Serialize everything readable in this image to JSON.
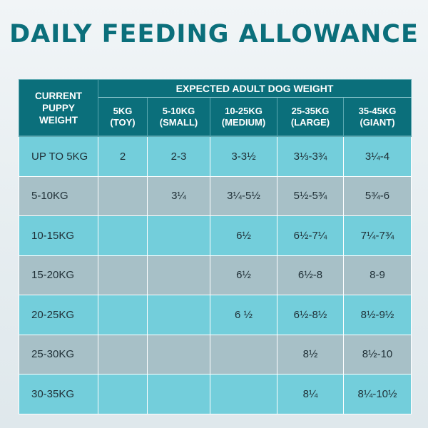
{
  "title": "DAILY FEEDING ALLOWANCE",
  "table": {
    "corner_lines": [
      "CURRENT",
      "PUPPY",
      "WEIGHT"
    ],
    "group_header": "EXPECTED ADULT DOG WEIGHT",
    "columns": [
      {
        "weight": "5KG",
        "size": "(TOY)"
      },
      {
        "weight": "5-10KG",
        "size": "(SMALL)"
      },
      {
        "weight": "10-25KG",
        "size": "(MEDIUM)"
      },
      {
        "weight": "25-35KG",
        "size": "(LARGE)"
      },
      {
        "weight": "35-45KG",
        "size": "(GIANT)"
      }
    ],
    "rows": [
      {
        "label": "UP TO 5KG",
        "cells": [
          "2",
          "2-3",
          "3-3½",
          "3⅓-3¾",
          "3¼-4"
        ]
      },
      {
        "label": "5-10KG",
        "cells": [
          "",
          "3¼",
          "3¼-5½",
          "5½-5¾",
          "5¾-6"
        ]
      },
      {
        "label": "10-15KG",
        "cells": [
          "",
          "",
          "6½",
          "6½-7¼",
          "7¼-7¾"
        ]
      },
      {
        "label": "15-20KG",
        "cells": [
          "",
          "",
          "6½",
          "6½-8",
          "8-9"
        ]
      },
      {
        "label": "20-25KG",
        "cells": [
          "",
          "",
          "6 ½",
          "6½-8½",
          "8½-9½"
        ]
      },
      {
        "label": "25-30KG",
        "cells": [
          "",
          "",
          "",
          "8½",
          "8½-10"
        ]
      },
      {
        "label": "30-35KG",
        "cells": [
          "",
          "",
          "",
          "8¼",
          "8¼-10½"
        ]
      }
    ]
  },
  "colors": {
    "header": "#0b6f7b",
    "row_light": "#73cedb",
    "row_grey": "#a7c0c7",
    "title": "#0b6f7b"
  }
}
